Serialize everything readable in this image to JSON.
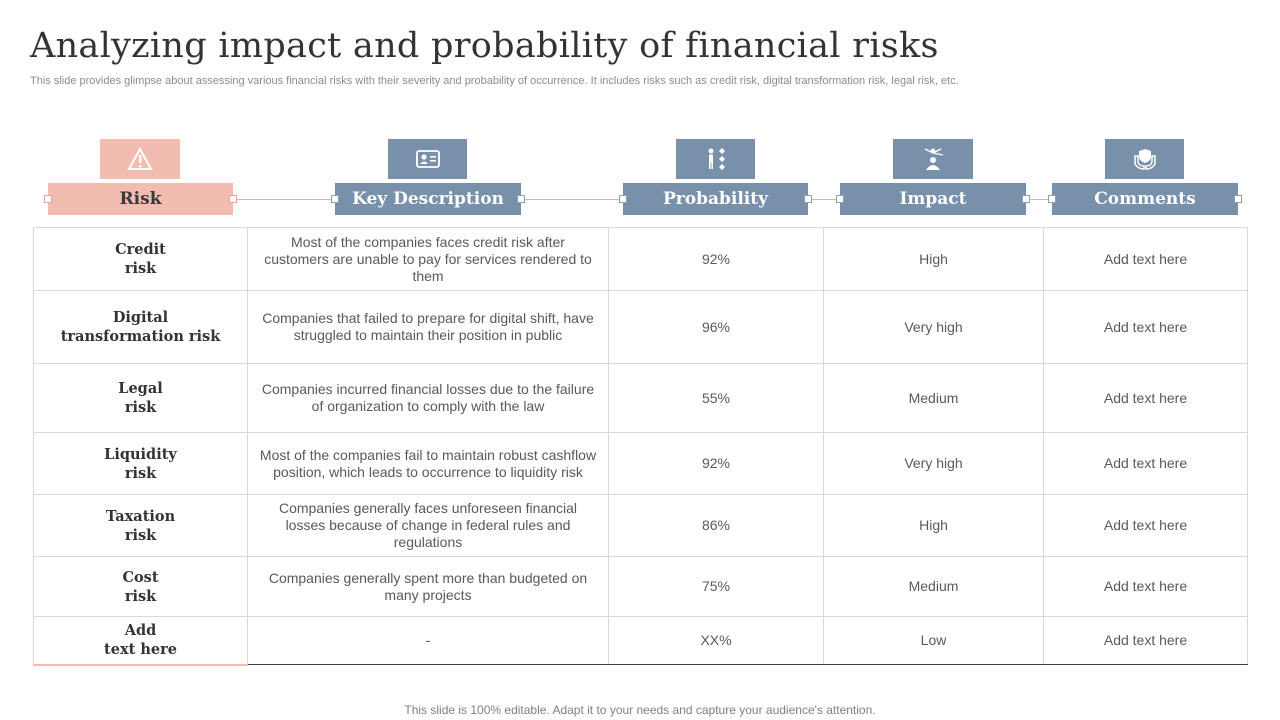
{
  "title": "Analyzing impact and probability of financial risks",
  "subtitle": "This slide provides glimpse about assessing various financial risks with their severity and probability of occurrence. It includes risks such as credit risk, digital transformation risk, legal risk, etc.",
  "headers": [
    {
      "label": "Risk",
      "icon": "warning-icon",
      "color": "#f2bdb0"
    },
    {
      "label": "Key Description",
      "icon": "id-card-icon",
      "color": "#7890aa"
    },
    {
      "label": "Probability",
      "icon": "decision-person-icon",
      "color": "#7890aa"
    },
    {
      "label": "Impact",
      "icon": "presenter-icon",
      "color": "#7890aa"
    },
    {
      "label": "Comments",
      "icon": "hands-shield-icon",
      "color": "#7890aa"
    }
  ],
  "rows": [
    {
      "risk": "Credit\nrisk",
      "description": "Most of the companies faces credit risk after customers are unable to pay for services rendered to them",
      "probability": "92%",
      "impact": "High",
      "comments": "Add text here"
    },
    {
      "risk": "Digital\ntransformation risk",
      "description": "Companies that failed to prepare for digital shift, have struggled to maintain their position in public",
      "probability": "96%",
      "impact": "Very high",
      "comments": "Add text here"
    },
    {
      "risk": "Legal\nrisk",
      "description": "Companies incurred financial losses due to the failure of organization to comply with the law",
      "probability": "55%",
      "impact": "Medium",
      "comments": "Add text here"
    },
    {
      "risk": "Liquidity\nrisk",
      "description": "Most of the companies fail to maintain robust cashflow position, which leads to occurrence to liquidity risk",
      "probability": "92%",
      "impact": "Very high",
      "comments": "Add text here"
    },
    {
      "risk": "Taxation\nrisk",
      "description": "Companies generally faces unforeseen financial losses because of change in federal rules and regulations",
      "probability": "86%",
      "impact": "High",
      "comments": "Add text here"
    },
    {
      "risk": "Cost\nrisk",
      "description": "Companies generally spent more than budgeted on many projects",
      "probability": "75%",
      "impact": "Medium",
      "comments": "Add text here"
    },
    {
      "risk": "Add\ntext here",
      "description": "-",
      "probability": "XX%",
      "impact": "Low",
      "comments": "Add text here"
    }
  ],
  "footer": "This slide is 100% editable. Adapt it to your needs and capture your audience's attention."
}
